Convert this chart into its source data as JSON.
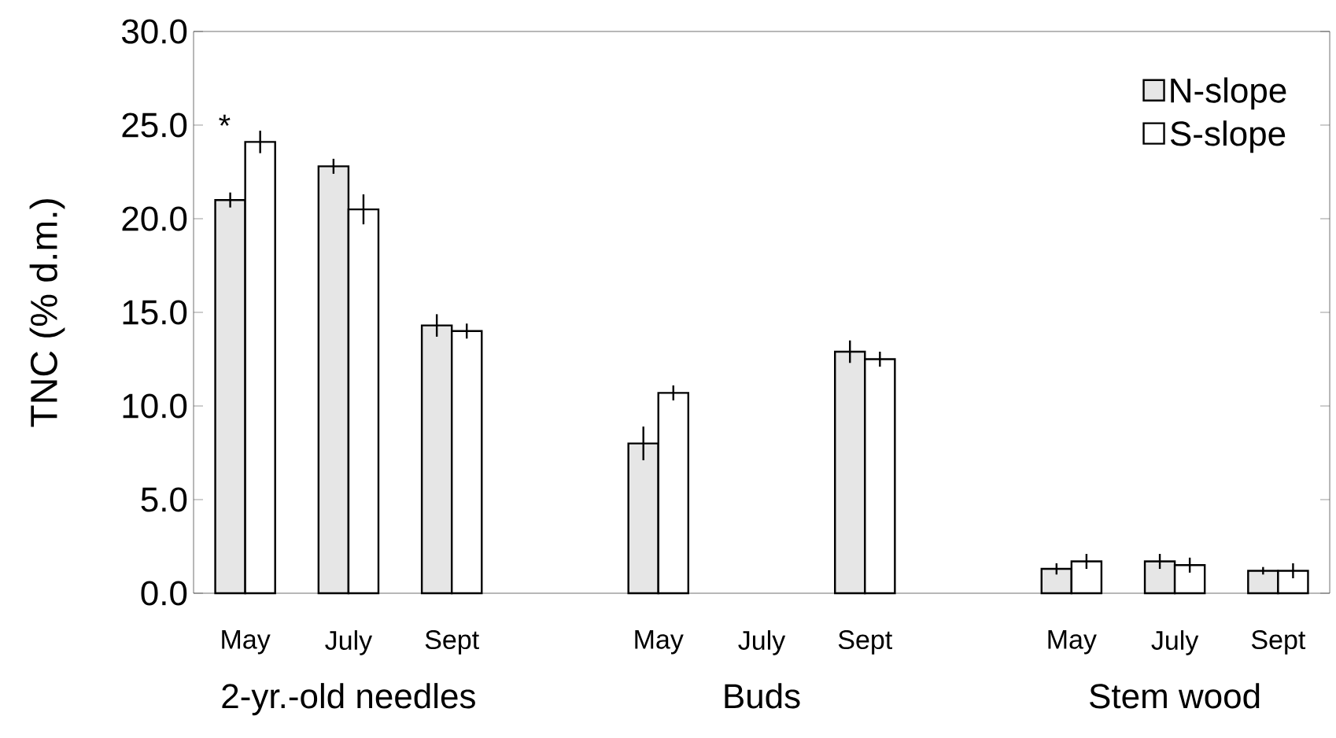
{
  "chart_data": {
    "type": "bar",
    "ylabel": "TNC (% d.m.)",
    "categories": [
      "May",
      "July",
      "Sept",
      null,
      "May",
      "July",
      "Sept",
      null,
      "May",
      "July",
      "Sept"
    ],
    "series": [
      {
        "name": "N-slope",
        "color": "#e6e6e6",
        "values": [
          21.0,
          22.8,
          14.3,
          null,
          8.0,
          null,
          12.9,
          null,
          1.3,
          1.7,
          1.2
        ],
        "errors": [
          0.4,
          0.4,
          0.6,
          null,
          0.9,
          null,
          0.6,
          null,
          0.3,
          0.4,
          0.2
        ]
      },
      {
        "name": "S-slope",
        "color": "#ffffff",
        "values": [
          24.1,
          20.5,
          14.0,
          null,
          10.7,
          null,
          12.5,
          null,
          1.7,
          1.5,
          1.2
        ],
        "errors": [
          0.6,
          0.8,
          0.4,
          null,
          0.4,
          null,
          0.4,
          null,
          0.4,
          0.4,
          0.4
        ]
      }
    ],
    "ylim": [
      0,
      30
    ],
    "yticks": [
      {
        "value": 0,
        "label": "0.0"
      },
      {
        "value": 5,
        "label": "5.0"
      },
      {
        "value": 10,
        "label": "10.0"
      },
      {
        "value": 15,
        "label": "15.0"
      },
      {
        "value": 20,
        "label": "20.0"
      },
      {
        "value": 25,
        "label": "25.0"
      },
      {
        "value": 30,
        "label": "30.0"
      }
    ],
    "legend": "top right",
    "grid": false,
    "annotations": [
      "*",
      "2-yr.-old needles",
      "Buds",
      "Stem wood"
    ]
  }
}
